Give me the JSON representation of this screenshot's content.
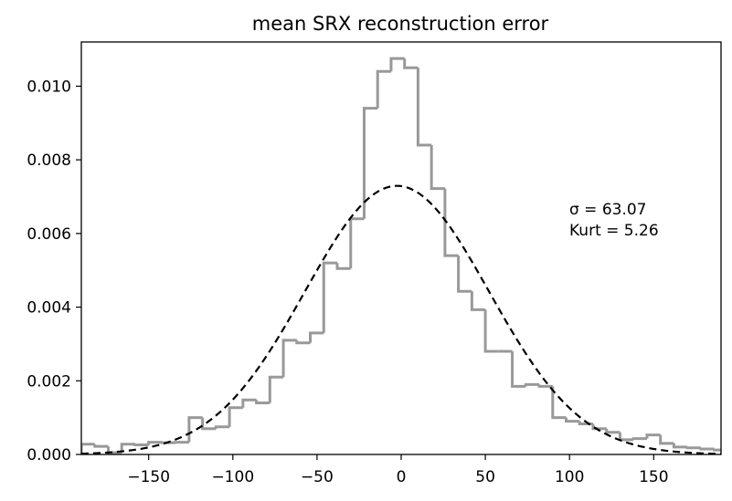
{
  "chart_data": {
    "type": "histogram",
    "title": "mean SRX reconstruction error",
    "xlabel": "",
    "ylabel": "",
    "xlim": [
      -190,
      190
    ],
    "ylim": [
      0,
      0.0112
    ],
    "xticks": [
      -150,
      -100,
      -50,
      0,
      50,
      100,
      150
    ],
    "yticks": [
      0.0,
      0.002,
      0.004,
      0.006,
      0.008,
      0.01
    ],
    "xtick_labels": [
      "−150",
      "−100",
      "−50",
      "0",
      "50",
      "100",
      "150"
    ],
    "ytick_labels": [
      "0.000",
      "0.002",
      "0.004",
      "0.006",
      "0.008",
      "0.010"
    ],
    "grid": false,
    "legend": false,
    "annotation": {
      "line1": "σ = 63.07",
      "line2": "Kurt  = 5.26"
    },
    "histogram": {
      "name": "",
      "color": "#999999",
      "bin_edges": [
        -190,
        -182,
        -174,
        -166,
        -158,
        -150,
        -142,
        -134,
        -126,
        -118,
        -110,
        -102,
        -94,
        -86,
        -78,
        -70,
        -62,
        -54,
        -46,
        -38,
        -30,
        -22,
        -14,
        -6,
        2,
        10,
        18,
        26,
        34,
        42,
        50,
        58,
        66,
        74,
        82,
        90,
        98,
        106,
        114,
        122,
        130,
        138,
        146,
        154,
        162,
        170,
        178,
        186,
        190
      ],
      "values": [
        0.00028,
        0.00022,
        5e-05,
        0.00028,
        0.00026,
        0.00033,
        0.00032,
        0.00033,
        0.001,
        0.0007,
        0.00075,
        0.00127,
        0.00148,
        0.0014,
        0.0021,
        0.0031,
        0.00303,
        0.0033,
        0.0052,
        0.00505,
        0.0064,
        0.0094,
        0.0104,
        0.01075,
        0.0105,
        0.0084,
        0.00722,
        0.0054,
        0.00443,
        0.00393,
        0.0028,
        0.0028,
        0.00185,
        0.0019,
        0.00185,
        0.001,
        0.0009,
        0.00083,
        0.0007,
        0.0006,
        0.0004,
        0.00043,
        0.00053,
        0.0003,
        0.0002,
        0.00018,
        0.00015,
        0.00012
      ]
    },
    "fit": {
      "name": "",
      "style": "dashed",
      "color": "#000000",
      "mean": -2.5,
      "sigma": 54.7
    }
  }
}
